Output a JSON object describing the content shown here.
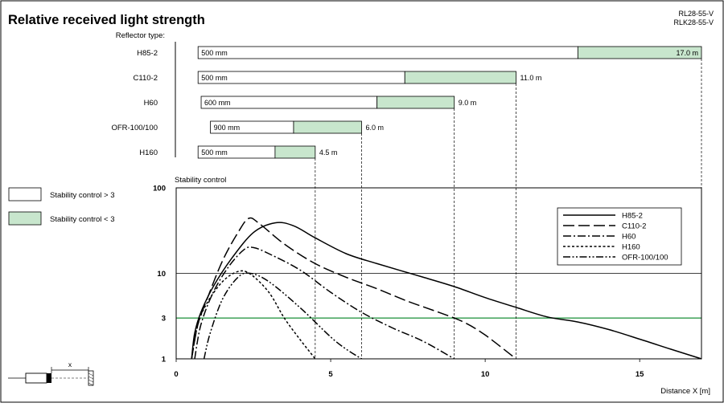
{
  "header": {
    "title": "Relative received light strength",
    "models": [
      "RL28-55-V",
      "RLK28-55-V"
    ]
  },
  "colors": {
    "stable_fill": "#c8e6cd",
    "unstable_fill": "#ffffff",
    "threshold_line": "#2e9a4a",
    "ink": "#000000"
  },
  "reflector_ranges": {
    "heading": "Reflector type:",
    "axis_max_m": 17,
    "rows": [
      {
        "name": "H85-2",
        "min_label": "500 mm",
        "min_m": 0.5,
        "green_start_m": 13.0,
        "max_m": 17.0,
        "max_label": "17.0 m",
        "label_inside": true
      },
      {
        "name": "C110-2",
        "min_label": "500 mm",
        "min_m": 0.5,
        "green_start_m": 7.4,
        "max_m": 11.0,
        "max_label": "11.0 m",
        "label_inside": false
      },
      {
        "name": "H60",
        "min_label": "600 mm",
        "min_m": 0.6,
        "green_start_m": 6.5,
        "max_m": 9.0,
        "max_label": "9.0 m",
        "label_inside": false
      },
      {
        "name": "OFR-100/100",
        "min_label": "900 mm",
        "min_m": 0.9,
        "green_start_m": 3.8,
        "max_m": 6.0,
        "max_label": "6.0 m",
        "label_inside": false
      },
      {
        "name": "H160",
        "min_label": "500 mm",
        "min_m": 0.5,
        "green_start_m": 3.2,
        "max_m": 4.5,
        "max_label": "4.5 m",
        "label_inside": false
      }
    ]
  },
  "legend_boxes": [
    {
      "label": "Stability control > 3",
      "fill": "#ffffff"
    },
    {
      "label": "Stability control < 3",
      "fill": "#c8e6cd"
    }
  ],
  "chart_data": {
    "type": "line",
    "title": "Relative received light strength",
    "ylabel": "Stability control",
    "xlabel": "Distance X [m]",
    "xlim": [
      0,
      17
    ],
    "ylim": [
      1,
      100
    ],
    "y_scale": "log",
    "x_ticks": [
      0,
      5,
      10,
      15
    ],
    "y_ticks": [
      1,
      3,
      10,
      100
    ],
    "threshold": 3,
    "legend_position": "top-right",
    "series": [
      {
        "name": "H85-2",
        "dash": "solid",
        "points": [
          [
            0.5,
            1
          ],
          [
            0.6,
            2
          ],
          [
            0.8,
            3.5
          ],
          [
            1.2,
            7
          ],
          [
            1.8,
            15
          ],
          [
            2.5,
            30
          ],
          [
            3.2,
            39
          ],
          [
            3.8,
            36
          ],
          [
            4.5,
            26
          ],
          [
            5.5,
            17
          ],
          [
            6.5,
            13
          ],
          [
            8,
            9
          ],
          [
            9,
            7
          ],
          [
            10,
            5.2
          ],
          [
            11,
            4
          ],
          [
            12,
            3.1
          ],
          [
            13,
            2.7
          ],
          [
            14,
            2.2
          ],
          [
            15,
            1.7
          ],
          [
            16,
            1.3
          ],
          [
            17,
            1
          ]
        ]
      },
      {
        "name": "C110-2",
        "dash": "long",
        "points": [
          [
            0.5,
            1
          ],
          [
            0.7,
            2.5
          ],
          [
            1,
            5
          ],
          [
            1.5,
            14
          ],
          [
            2,
            30
          ],
          [
            2.35,
            44
          ],
          [
            2.7,
            38
          ],
          [
            3.5,
            22
          ],
          [
            4.5,
            13
          ],
          [
            5.5,
            9
          ],
          [
            6.5,
            6.6
          ],
          [
            7.5,
            4.7
          ],
          [
            8.5,
            3.5
          ],
          [
            9.3,
            2.7
          ],
          [
            10,
            1.9
          ],
          [
            11,
            1
          ]
        ]
      },
      {
        "name": "H60",
        "dash": "dashdot",
        "points": [
          [
            0.6,
            1
          ],
          [
            0.8,
            2.5
          ],
          [
            1.2,
            6
          ],
          [
            1.7,
            12
          ],
          [
            2.2,
            19
          ],
          [
            2.5,
            20
          ],
          [
            3,
            17
          ],
          [
            4,
            11
          ],
          [
            5,
            6
          ],
          [
            6,
            3.5
          ],
          [
            7,
            2.3
          ],
          [
            8,
            1.6
          ],
          [
            9,
            1
          ]
        ]
      },
      {
        "name": "H160",
        "dash": "short",
        "points": [
          [
            0.5,
            1
          ],
          [
            0.7,
            2.5
          ],
          [
            1,
            4.5
          ],
          [
            1.5,
            8
          ],
          [
            2,
            10.5
          ],
          [
            2.4,
            9.8
          ],
          [
            3,
            6
          ],
          [
            3.5,
            3
          ],
          [
            4,
            1.7
          ],
          [
            4.5,
            1
          ]
        ]
      },
      {
        "name": "OFR-100/100",
        "dash": "dashdotdot",
        "points": [
          [
            0.9,
            1
          ],
          [
            1.1,
            2
          ],
          [
            1.5,
            5
          ],
          [
            2,
            9
          ],
          [
            2.4,
            10
          ],
          [
            3,
            8
          ],
          [
            4,
            4
          ],
          [
            5,
            1.8
          ],
          [
            5.5,
            1.3
          ],
          [
            6,
            1
          ]
        ]
      }
    ]
  }
}
